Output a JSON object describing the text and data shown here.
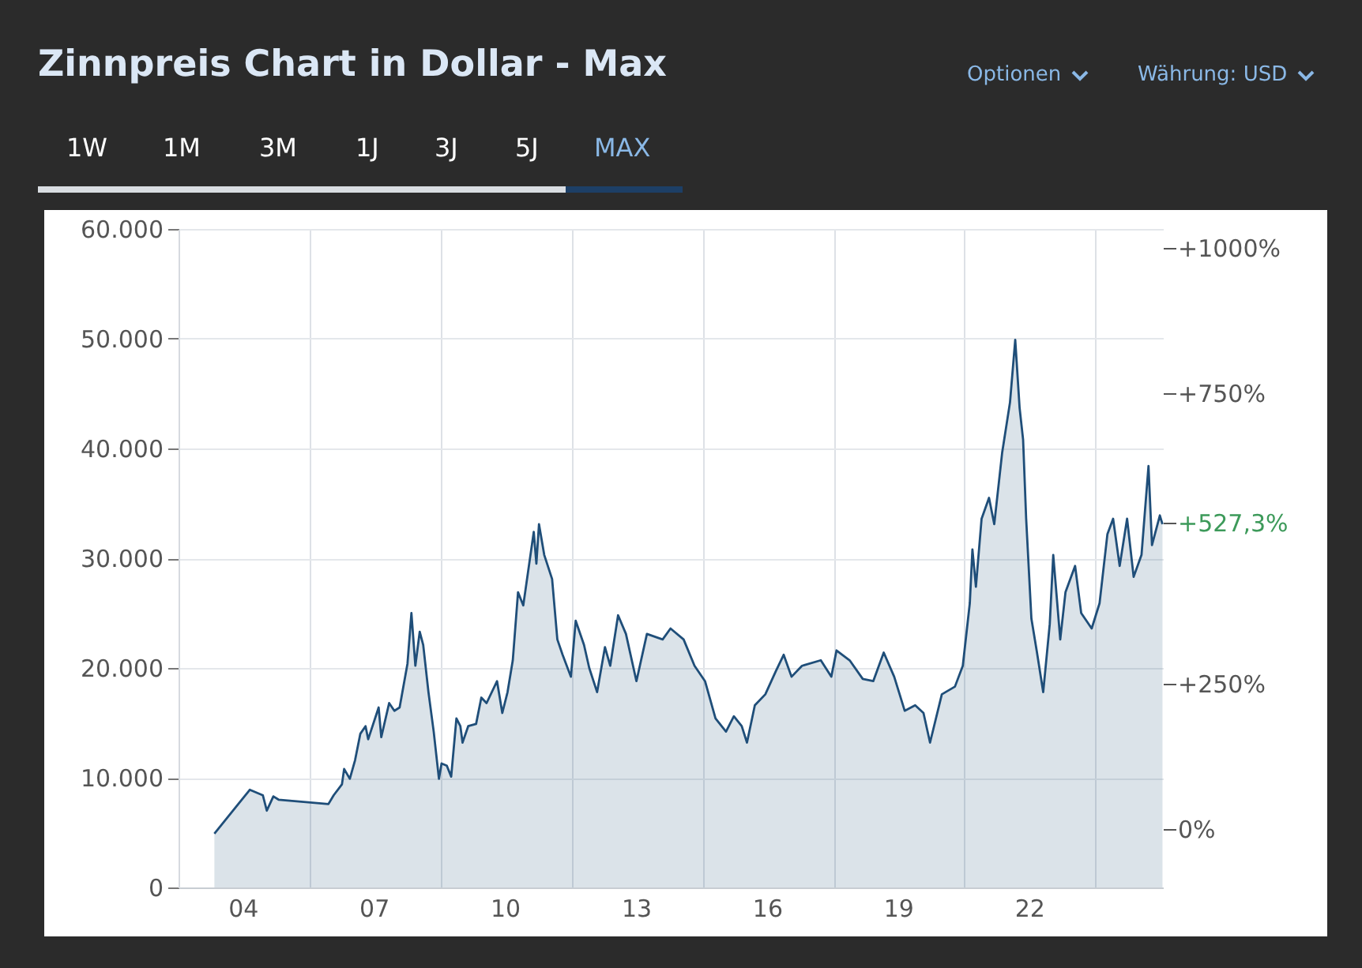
{
  "chart_data": {
    "type": "area",
    "title": "Zinnpreis Chart in Dollar - Max",
    "annotations": [
      "Optionen",
      "Währung: USD",
      "1W",
      "1M",
      "3M",
      "1J",
      "3J",
      "5J",
      "MAX"
    ],
    "x": [
      2003.35,
      2004.16,
      2004.46,
      2004.55,
      2004.7,
      2004.82,
      2005.96,
      2006.08,
      2006.27,
      2006.32,
      2006.45,
      2006.57,
      2006.69,
      2006.81,
      2006.87,
      2007.11,
      2007.17,
      2007.35,
      2007.47,
      2007.59,
      2007.77,
      2007.86,
      2007.95,
      2008.05,
      2008.13,
      2008.25,
      2008.37,
      2008.49,
      2008.55,
      2008.67,
      2008.77,
      2008.89,
      2008.98,
      2009.03,
      2009.16,
      2009.34,
      2009.46,
      2009.58,
      2009.82,
      2009.94,
      2010.06,
      2010.18,
      2010.3,
      2010.42,
      2010.66,
      2010.72,
      2010.78,
      2010.9,
      2011.08,
      2011.2,
      2011.32,
      2011.51,
      2011.62,
      2011.81,
      2011.93,
      2012.11,
      2012.29,
      2012.41,
      2012.59,
      2012.77,
      2013.01,
      2013.25,
      2013.61,
      2013.79,
      2014.09,
      2014.34,
      2014.58,
      2014.82,
      2015.06,
      2015.24,
      2015.42,
      2015.54,
      2015.72,
      2015.96,
      2016.2,
      2016.38,
      2016.56,
      2016.8,
      2017.23,
      2017.47,
      2017.59,
      2017.89,
      2018.19,
      2018.43,
      2018.67,
      2018.91,
      2019.15,
      2019.39,
      2019.58,
      2019.73,
      2020.0,
      2020.3,
      2020.48,
      2020.64,
      2020.7,
      2020.78,
      2020.91,
      2021.08,
      2021.2,
      2021.38,
      2021.56,
      2021.68,
      2021.78,
      2021.86,
      2021.93,
      2022.05,
      2022.17,
      2022.32,
      2022.47,
      2022.55,
      2022.71,
      2022.83,
      2023.05,
      2023.19,
      2023.43,
      2023.61,
      2023.79,
      2023.92,
      2024.07,
      2024.24,
      2024.39,
      2024.57,
      2024.73,
      2024.81,
      2024.99,
      2025.05
    ],
    "series": [
      {
        "color": "#1f4e79",
        "values": [
          4900,
          8900,
          8400,
          7000,
          8300,
          8000,
          7600,
          8400,
          9400,
          10800,
          9900,
          11600,
          14000,
          14700,
          13500,
          16400,
          13700,
          16800,
          16100,
          16400,
          20400,
          25000,
          20200,
          23300,
          22100,
          17800,
          14200,
          9900,
          11300,
          11100,
          10100,
          15400,
          14700,
          13200,
          14700,
          14900,
          17300,
          16800,
          18800,
          15900,
          17800,
          20700,
          26900,
          25700,
          32400,
          29500,
          33100,
          30300,
          28100,
          22600,
          21200,
          19200,
          24300,
          22100,
          20000,
          17800,
          21900,
          20200,
          24800,
          23100,
          18800,
          23100,
          22600,
          23600,
          22600,
          20200,
          18800,
          15400,
          14200,
          15600,
          14700,
          13200,
          16600,
          17600,
          19700,
          21200,
          19200,
          20200,
          20700,
          19200,
          21600,
          20700,
          19000,
          18800,
          21400,
          19200,
          16100,
          16600,
          15900,
          13200,
          17600,
          18300,
          20200,
          25900,
          30800,
          27400,
          33600,
          35500,
          33100,
          39600,
          44200,
          49900,
          43700,
          40800,
          33600,
          24500,
          21600,
          17800,
          24000,
          30300,
          22600,
          26900,
          29300,
          25000,
          23600,
          25900,
          32200,
          33600,
          29300,
          33600,
          28300,
          30300,
          38400,
          31200,
          33900,
          33100
        ]
      }
    ],
    "xlim": [
      2002.53,
      2025.06
    ],
    "xticks": [
      {
        "value": 2004,
        "label": "04"
      },
      {
        "value": 2005.52,
        "label": null
      },
      {
        "value": 2007,
        "label": "07"
      },
      {
        "value": 2008.52,
        "label": null
      },
      {
        "value": 2010,
        "label": "10"
      },
      {
        "value": 2011.52,
        "label": null
      },
      {
        "value": 2013,
        "label": "13"
      },
      {
        "value": 2014.52,
        "label": null
      },
      {
        "value": 2016,
        "label": "16"
      },
      {
        "value": 2017.52,
        "label": null
      },
      {
        "value": 2019,
        "label": "19"
      },
      {
        "value": 2020.52,
        "label": null
      },
      {
        "value": 2022,
        "label": "22"
      },
      {
        "value": 2023.52,
        "label": null
      }
    ],
    "ylim": [
      0,
      60000
    ],
    "yticks": [
      0,
      {
        "value": 10000,
        "label": "10.000"
      },
      {
        "value": 20000,
        "label": "20.000"
      },
      {
        "value": 30000,
        "label": "30.000"
      },
      {
        "value": 40000,
        "label": "40.000"
      },
      {
        "value": 50000,
        "label": "50.000"
      },
      {
        "value": 60000,
        "label": "60.000"
      }
    ],
    "y2lim": [
      -100,
      1032
    ],
    "y2ticks": [
      {
        "value": 0,
        "label": "0%"
      },
      {
        "value": 250,
        "label": "+250%"
      },
      {
        "value": 750,
        "label": "+750%"
      },
      {
        "value": 1000,
        "label": "+1000%"
      },
      {
        "value": 527.3,
        "label": "+527,3%"
      }
    ],
    "grid": true
  }
}
